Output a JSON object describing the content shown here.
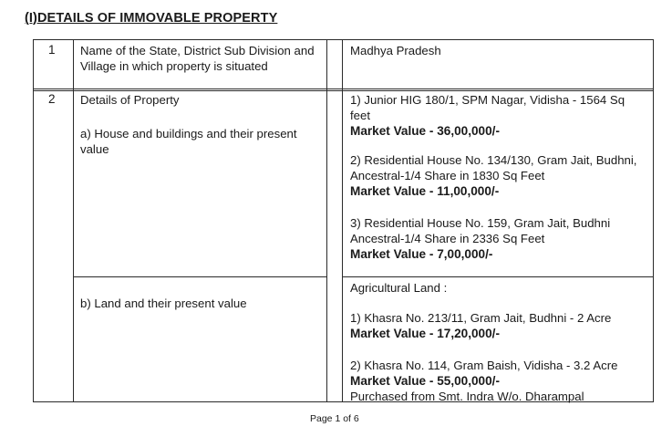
{
  "document": {
    "heading": "(I)DETAILS OF IMMOVABLE PROPERTY",
    "rows": [
      {
        "number": "1",
        "label": "Name of the State, District Sub Division and Village in which property is situated",
        "value": "Madhya Pradesh"
      },
      {
        "number": "2",
        "label": "Details of Property",
        "sub_a_label": "a) House and buildings and their present value",
        "sub_b_label": "b) Land and their present value",
        "houses": [
          {
            "text": "1) Junior HIG 180/1, SPM Nagar, Vidisha  - 1564 Sq feet",
            "market": "Market Value - 36,00,000/-"
          },
          {
            "text": "2) Residential House No. 134/130, Gram Jait, Budhni, Ancestral-1/4 Share in 1830 Sq Feet",
            "market": "Market Value - 11,00,000/-"
          },
          {
            "text": "3) Residential House No. 159, Gram Jait, Budhni Ancestral-1/4 Share in 2336 Sq Feet",
            "market": "Market Value - 7,00,000/-"
          }
        ],
        "land_heading": "Agricultural Land :",
        "lands": [
          {
            "text": "1) Khasra No. 213/11, Gram Jait, Budhni - 2 Acre",
            "market": "Market Value - 17,20,000/-"
          },
          {
            "text": "2) Khasra No. 114, Gram Baish, Vidisha - 3.2 Acre",
            "market": "Market Value - 55,00,000/-",
            "note": "Purchased from Smt. Indra W/o. Dharampal"
          }
        ]
      }
    ],
    "footer": "Page 1 of 6"
  }
}
